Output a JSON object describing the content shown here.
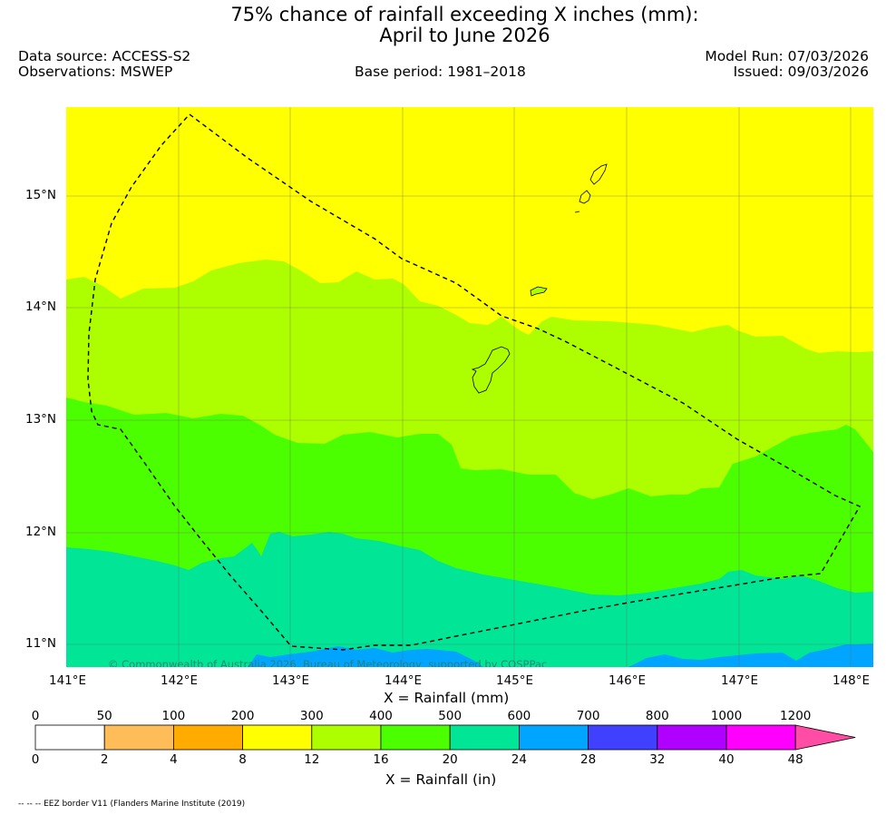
{
  "header": {
    "title_line1": "75% chance of rainfall exceeding X inches (mm):",
    "title_line2": "April to June 2026",
    "data_source": "Data source: ACCESS-S2",
    "observations": "Observations: MSWEP",
    "base_period": "Base period: 1981–2018",
    "model_run": "Model Run: 07/03/2026",
    "issued": "Issued: 09/03/2026"
  },
  "map": {
    "region": "Mariana Islands / Guam",
    "lat_labels": [
      "15°N",
      "14°N",
      "13°N",
      "12°N",
      "11°N"
    ],
    "lon_labels": [
      "141°E",
      "142°E",
      "143°E",
      "144°E",
      "145°E",
      "146°E",
      "147°E",
      "148°E"
    ],
    "copyright": "© Commonwealth of Australia 2026, Bureau of Meteorology, supported by COSPPac",
    "zones_mm": [
      {
        "range": "200–300",
        "color": "#ffff00"
      },
      {
        "range": "300–400",
        "color": "#adff00"
      },
      {
        "range": "400–500",
        "color": "#4cff00"
      },
      {
        "range": "500–600",
        "color": "#00e596"
      },
      {
        "range": "600–700",
        "color": "#00a5ff"
      }
    ]
  },
  "legend": {
    "mm_label": "X = Rainfall (mm)",
    "in_label": "X = Rainfall (in)",
    "mm_ticks": [
      "0",
      "50",
      "100",
      "200",
      "300",
      "400",
      "500",
      "600",
      "700",
      "800",
      "1000",
      "1200"
    ],
    "in_ticks": [
      "0",
      "2",
      "4",
      "8",
      "12",
      "16",
      "20",
      "24",
      "28",
      "32",
      "40",
      "48"
    ],
    "colors": [
      "#ffffff",
      "#ffbd5a",
      "#ffab00",
      "#ffff00",
      "#adff00",
      "#4cff00",
      "#00e596",
      "#00a5ff",
      "#4040ff",
      "#b000ff",
      "#ff00ff",
      "#ff4ca5"
    ]
  },
  "footer": {
    "eez_note": "-- -- -- EEZ border V11 (Flanders Marine Institute (2019)"
  }
}
